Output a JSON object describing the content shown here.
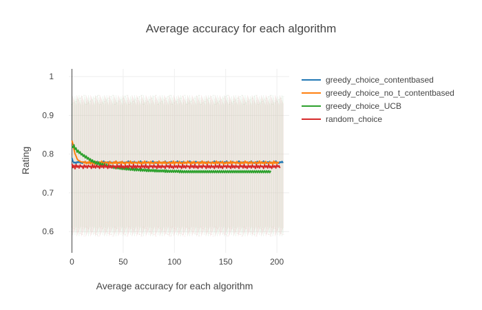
{
  "chart_data": {
    "type": "line",
    "title": "Average accuracy for each algorithm",
    "xlabel": "Average accuracy for each algorithm",
    "ylabel": "Rating",
    "xlim": [
      -3,
      212
    ],
    "ylim": [
      0.545,
      1.02
    ],
    "x_ticks": [
      "0",
      "50",
      "100",
      "150",
      "200"
    ],
    "y_ticks": [
      "0.6",
      "0.7",
      "0.8",
      "0.9",
      "1"
    ],
    "grid": true,
    "legend_position": "top-right",
    "error_bars": {
      "shown": true,
      "lower_approx": 0.6,
      "upper_approx": 0.94,
      "colors": [
        "#ccc9b8",
        "#b5d6b5",
        "#f3c0c0"
      ]
    },
    "series": [
      {
        "name": "greedy_choice_contentbased",
        "color": "#1f77b4",
        "values": [
          0.79,
          0.781,
          0.777,
          0.779,
          0.776,
          0.78,
          0.778,
          0.782,
          0.777,
          0.779,
          0.776,
          0.78,
          0.778,
          0.781,
          0.777,
          0.779,
          0.776,
          0.78,
          0.778,
          0.782,
          0.777,
          0.779,
          0.776,
          0.78,
          0.778,
          0.781,
          0.777,
          0.779,
          0.776,
          0.78,
          0.778,
          0.782,
          0.777,
          0.779,
          0.776,
          0.78,
          0.778,
          0.781,
          0.777,
          0.779,
          0.776,
          0.78,
          0.778,
          0.782,
          0.777,
          0.779,
          0.776,
          0.78,
          0.778,
          0.781,
          0.777,
          0.779,
          0.776,
          0.78,
          0.778,
          0.782,
          0.777,
          0.779,
          0.776,
          0.78,
          0.778,
          0.781,
          0.777,
          0.779,
          0.776,
          0.78,
          0.778,
          0.782,
          0.777,
          0.779,
          0.776,
          0.78,
          0.778,
          0.781,
          0.777,
          0.779,
          0.776,
          0.78,
          0.778,
          0.782,
          0.777,
          0.779,
          0.776,
          0.78,
          0.778,
          0.781,
          0.777,
          0.779,
          0.776,
          0.78,
          0.778,
          0.782,
          0.777,
          0.779,
          0.776,
          0.78,
          0.778,
          0.781,
          0.777,
          0.779,
          0.776,
          0.78,
          0.778,
          0.782,
          0.777,
          0.779,
          0.776,
          0.78,
          0.778,
          0.781,
          0.777,
          0.779,
          0.776,
          0.78,
          0.778,
          0.782,
          0.777,
          0.779,
          0.776,
          0.78,
          0.778,
          0.781,
          0.777,
          0.779,
          0.776,
          0.78,
          0.778,
          0.782,
          0.777,
          0.779,
          0.776,
          0.78,
          0.778,
          0.781,
          0.777,
          0.779,
          0.776,
          0.78,
          0.778,
          0.782,
          0.777,
          0.779,
          0.776,
          0.78,
          0.778,
          0.781,
          0.777,
          0.779,
          0.776,
          0.78,
          0.778,
          0.782,
          0.777,
          0.779,
          0.776,
          0.78,
          0.778,
          0.781,
          0.777,
          0.779,
          0.776,
          0.78,
          0.778,
          0.782,
          0.777,
          0.779,
          0.776,
          0.78,
          0.778,
          0.781,
          0.777,
          0.779,
          0.776,
          0.78,
          0.778,
          0.782,
          0.777,
          0.779,
          0.776,
          0.78,
          0.778,
          0.781,
          0.777,
          0.779,
          0.776,
          0.78,
          0.778,
          0.782,
          0.777,
          0.779,
          0.776,
          0.78,
          0.778,
          0.781,
          0.777,
          0.779,
          0.776,
          0.78,
          0.778,
          0.782,
          0.777,
          0.779,
          0.776,
          0.78,
          0.778,
          0.781,
          0.777
        ]
      },
      {
        "name": "greedy_choice_no_t_contentbased",
        "color": "#ff7f0e",
        "values": [
          0.835,
          0.826,
          0.812,
          0.801,
          0.795,
          0.788,
          0.784,
          0.783,
          0.781,
          0.78,
          0.779,
          0.78,
          0.777,
          0.781,
          0.775,
          0.779,
          0.776,
          0.782,
          0.774,
          0.78,
          0.776,
          0.778,
          0.773,
          0.781,
          0.777,
          0.779,
          0.776,
          0.78,
          0.775,
          0.782,
          0.776,
          0.779,
          0.774,
          0.78,
          0.777,
          0.779,
          0.773,
          0.781,
          0.776,
          0.778,
          0.775,
          0.78,
          0.776,
          0.782,
          0.774,
          0.779,
          0.777,
          0.78,
          0.775,
          0.781,
          0.776,
          0.778,
          0.773,
          0.78,
          0.777,
          0.779,
          0.775,
          0.782,
          0.776,
          0.779,
          0.774,
          0.78,
          0.777,
          0.778,
          0.775,
          0.781,
          0.776,
          0.779,
          0.773,
          0.78,
          0.776,
          0.782,
          0.775,
          0.779,
          0.777,
          0.78,
          0.774,
          0.781,
          0.776,
          0.778,
          0.775,
          0.78,
          0.777,
          0.779,
          0.773,
          0.782,
          0.776,
          0.779,
          0.775,
          0.78,
          0.776,
          0.781,
          0.774,
          0.778,
          0.777,
          0.78,
          0.775,
          0.779,
          0.776,
          0.782,
          0.773,
          0.78,
          0.777,
          0.779,
          0.775,
          0.781,
          0.776,
          0.778,
          0.774,
          0.78,
          0.776,
          0.779,
          0.775,
          0.782,
          0.777,
          0.779,
          0.773,
          0.78,
          0.776,
          0.781,
          0.775,
          0.778,
          0.777,
          0.78,
          0.774,
          0.779,
          0.776,
          0.782,
          0.775,
          0.78,
          0.776,
          0.779,
          0.773,
          0.781,
          0.777,
          0.778,
          0.775,
          0.78,
          0.776,
          0.779,
          0.774,
          0.782,
          0.776,
          0.78,
          0.775,
          0.779,
          0.777,
          0.781,
          0.773,
          0.778,
          0.776,
          0.78,
          0.775,
          0.779,
          0.776,
          0.782,
          0.774,
          0.78,
          0.777,
          0.779,
          0.775,
          0.781,
          0.776,
          0.778,
          0.773,
          0.78,
          0.776,
          0.779,
          0.775,
          0.782,
          0.777,
          0.78,
          0.774,
          0.779,
          0.776,
          0.781,
          0.775,
          0.778,
          0.777,
          0.78,
          0.773,
          0.779,
          0.776,
          0.782,
          0.775,
          0.78,
          0.776,
          0.779,
          0.774,
          0.781,
          0.777,
          0.778,
          0.775,
          0.78,
          0.776,
          0.779,
          0.773,
          0.782,
          0.776,
          0.78,
          0.775,
          0.779,
          0.777
        ]
      },
      {
        "name": "greedy_choice_UCB",
        "color": "#2ca02c",
        "values": [
          0.82,
          0.817,
          0.824,
          0.812,
          0.816,
          0.805,
          0.81,
          0.802,
          0.806,
          0.798,
          0.801,
          0.794,
          0.798,
          0.79,
          0.795,
          0.787,
          0.791,
          0.784,
          0.788,
          0.78,
          0.785,
          0.778,
          0.782,
          0.775,
          0.78,
          0.773,
          0.779,
          0.771,
          0.777,
          0.77,
          0.776,
          0.768,
          0.775,
          0.767,
          0.773,
          0.766,
          0.772,
          0.765,
          0.771,
          0.764,
          0.77,
          0.763,
          0.769,
          0.762,
          0.768,
          0.762,
          0.767,
          0.761,
          0.767,
          0.76,
          0.766,
          0.76,
          0.765,
          0.759,
          0.765,
          0.759,
          0.764,
          0.758,
          0.764,
          0.758,
          0.763,
          0.757,
          0.763,
          0.757,
          0.762,
          0.757,
          0.762,
          0.756,
          0.762,
          0.756,
          0.761,
          0.756,
          0.761,
          0.755,
          0.761,
          0.755,
          0.76,
          0.755,
          0.76,
          0.755,
          0.76,
          0.754,
          0.76,
          0.754,
          0.759,
          0.754,
          0.759,
          0.754,
          0.759,
          0.754,
          0.759,
          0.753,
          0.759,
          0.753,
          0.758,
          0.753,
          0.758,
          0.753,
          0.758,
          0.753,
          0.758,
          0.753,
          0.758,
          0.753,
          0.758,
          0.752,
          0.758,
          0.752,
          0.757,
          0.752,
          0.757,
          0.752,
          0.757,
          0.752,
          0.757,
          0.752,
          0.757,
          0.752,
          0.757,
          0.752,
          0.757,
          0.752,
          0.757,
          0.752,
          0.757,
          0.752,
          0.757,
          0.752,
          0.757,
          0.752,
          0.757,
          0.752,
          0.757,
          0.752,
          0.757,
          0.752,
          0.757,
          0.752,
          0.757,
          0.752,
          0.757,
          0.752,
          0.757,
          0.752,
          0.757,
          0.752,
          0.757,
          0.752,
          0.757,
          0.752,
          0.757,
          0.752,
          0.757,
          0.752,
          0.757,
          0.752,
          0.757,
          0.752,
          0.757,
          0.752,
          0.757,
          0.752,
          0.757,
          0.752,
          0.757,
          0.752,
          0.757,
          0.752,
          0.757,
          0.752,
          0.757,
          0.752,
          0.757,
          0.752,
          0.757,
          0.752,
          0.757,
          0.752,
          0.757,
          0.752,
          0.757,
          0.752,
          0.757,
          0.752,
          0.757,
          0.752,
          0.757,
          0.752,
          0.757,
          0.752,
          0.757,
          0.752,
          0.757,
          0.752,
          0.757
        ]
      },
      {
        "name": "random_choice",
        "color": "#d62728",
        "values": [
          0.775,
          0.765,
          0.771,
          0.762,
          0.773,
          0.766,
          0.77,
          0.764,
          0.772,
          0.767,
          0.769,
          0.763,
          0.772,
          0.766,
          0.77,
          0.764,
          0.771,
          0.767,
          0.769,
          0.763,
          0.773,
          0.765,
          0.77,
          0.764,
          0.772,
          0.766,
          0.769,
          0.763,
          0.771,
          0.766,
          0.77,
          0.764,
          0.773,
          0.766,
          0.769,
          0.763,
          0.772,
          0.765,
          0.77,
          0.764,
          0.771,
          0.767,
          0.769,
          0.763,
          0.772,
          0.766,
          0.77,
          0.764,
          0.773,
          0.765,
          0.769,
          0.763,
          0.771,
          0.766,
          0.77,
          0.764,
          0.772,
          0.767,
          0.769,
          0.763,
          0.773,
          0.765,
          0.77,
          0.764,
          0.771,
          0.766,
          0.769,
          0.763,
          0.772,
          0.766,
          0.77,
          0.764,
          0.773,
          0.765,
          0.769,
          0.763,
          0.771,
          0.767,
          0.77,
          0.764,
          0.772,
          0.766,
          0.769,
          0.763,
          0.773,
          0.765,
          0.77,
          0.764,
          0.771,
          0.766,
          0.769,
          0.763,
          0.772,
          0.767,
          0.77,
          0.764,
          0.773,
          0.765,
          0.769,
          0.763,
          0.771,
          0.766,
          0.77,
          0.764,
          0.772,
          0.766,
          0.769,
          0.763,
          0.773,
          0.765,
          0.77,
          0.764,
          0.771,
          0.767,
          0.769,
          0.763,
          0.772,
          0.766,
          0.77,
          0.764,
          0.773,
          0.765,
          0.769,
          0.763,
          0.771,
          0.766,
          0.77,
          0.764,
          0.772,
          0.767,
          0.769,
          0.763,
          0.773,
          0.765,
          0.77,
          0.764,
          0.771,
          0.766,
          0.769,
          0.763,
          0.772,
          0.766,
          0.77,
          0.764,
          0.773,
          0.765,
          0.769,
          0.763,
          0.771,
          0.767,
          0.77,
          0.764,
          0.772,
          0.766,
          0.769,
          0.763,
          0.773,
          0.765,
          0.77,
          0.764,
          0.771,
          0.766,
          0.769,
          0.763,
          0.772,
          0.767,
          0.77,
          0.764,
          0.773,
          0.765,
          0.769,
          0.763,
          0.771,
          0.766,
          0.77,
          0.764,
          0.772,
          0.766,
          0.769,
          0.763,
          0.773,
          0.765,
          0.77,
          0.764,
          0.771,
          0.767,
          0.769,
          0.763,
          0.772,
          0.766,
          0.77,
          0.764,
          0.773,
          0.765,
          0.769,
          0.763,
          0.771,
          0.766,
          0.77,
          0.764,
          0.772,
          0.767,
          0.77,
          0.764
        ]
      }
    ]
  }
}
